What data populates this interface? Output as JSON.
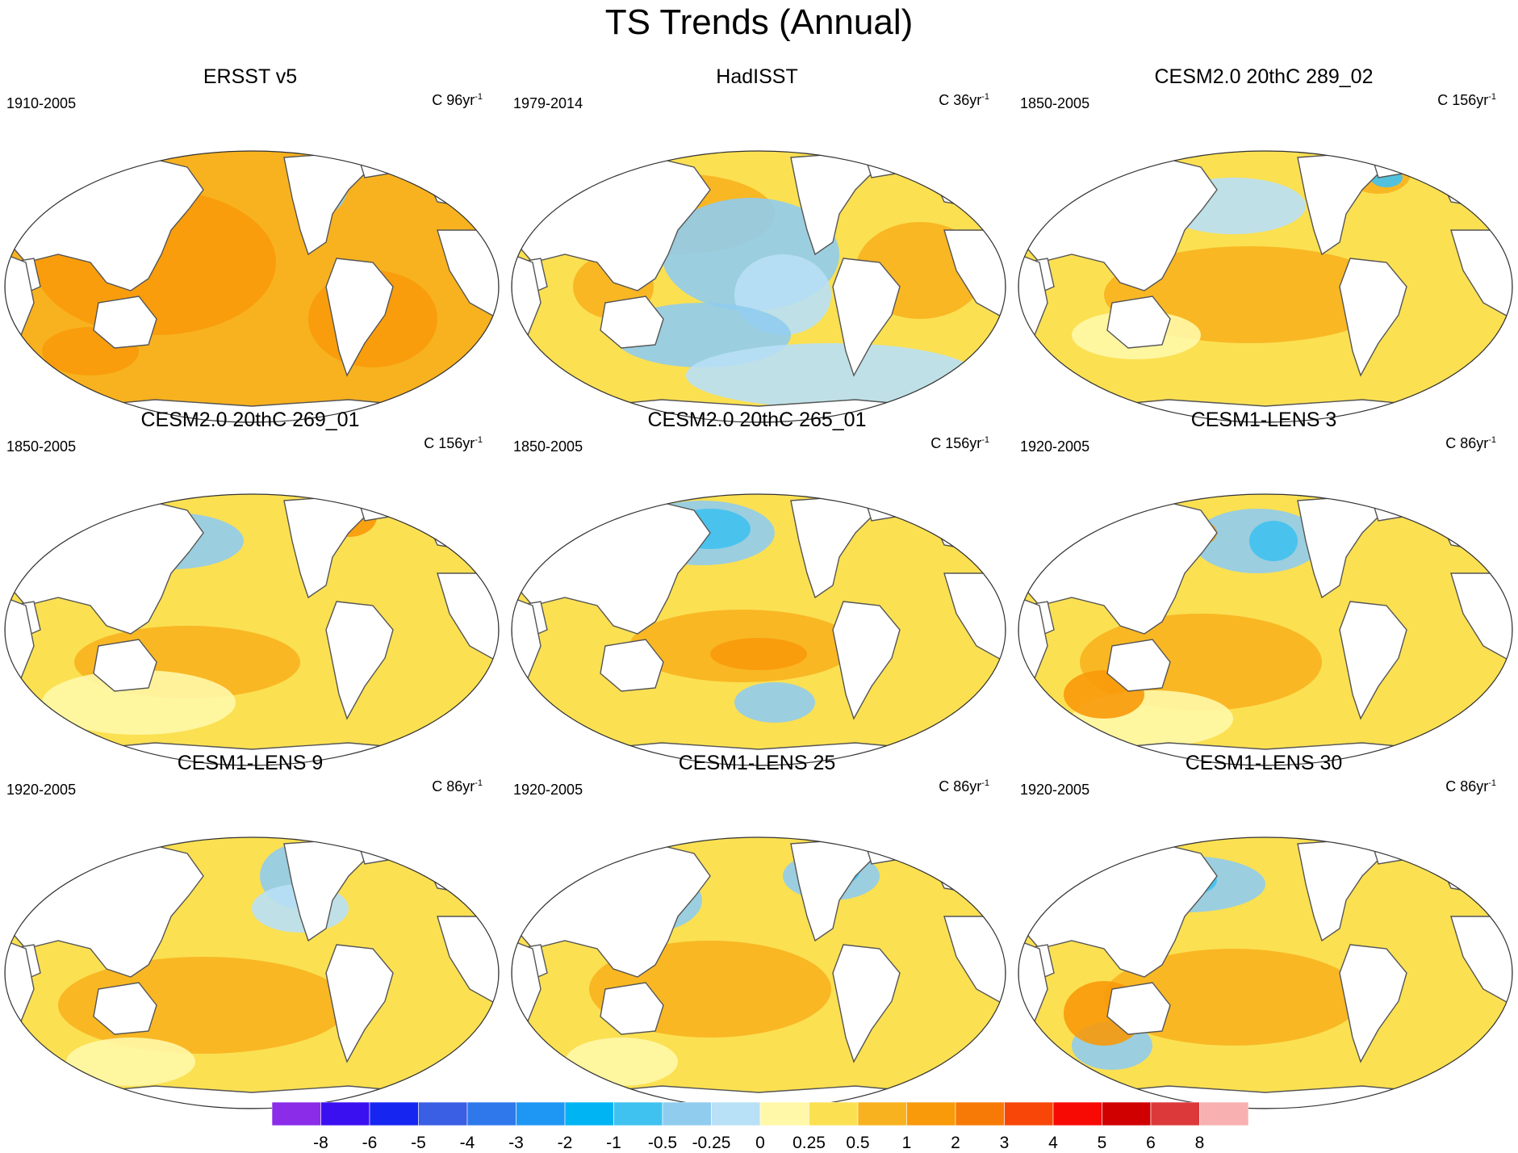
{
  "title": "TS Trends (Annual)",
  "panels": [
    {
      "title": "ERSST v5",
      "period": "1910-2005",
      "units": "C 96yr",
      "units_exp": "-1",
      "base": "#f8b21f",
      "variant": "ersst"
    },
    {
      "title": "HadISST",
      "period": "1979-2014",
      "units": "C 36yr",
      "units_exp": "-1",
      "base": "#fbe052",
      "variant": "hadisst"
    },
    {
      "title": "CESM2.0 20thC 289_02",
      "period": "1850-2005",
      "units": "C 156yr",
      "units_exp": "-1",
      "base": "#fbe052",
      "variant": "cesm2a"
    },
    {
      "title": "CESM2.0 20thC 269_01",
      "period": "1850-2005",
      "units": "C 156yr",
      "units_exp": "-1",
      "base": "#fbe052",
      "variant": "cesm2b"
    },
    {
      "title": "CESM2.0 20thC 265_01",
      "period": "1850-2005",
      "units": "C 156yr",
      "units_exp": "-1",
      "base": "#fbe052",
      "variant": "cesm2c"
    },
    {
      "title": "CESM1-LENS 3",
      "period": "1920-2005",
      "units": "C 86yr",
      "units_exp": "-1",
      "base": "#fbe052",
      "variant": "lens"
    },
    {
      "title": "CESM1-LENS 9",
      "period": "1920-2005",
      "units": "C 86yr",
      "units_exp": "-1",
      "base": "#fbe052",
      "variant": "lens9"
    },
    {
      "title": "CESM1-LENS 25",
      "period": "1920-2005",
      "units": "C 86yr",
      "units_exp": "-1",
      "base": "#fbe052",
      "variant": "lens25"
    },
    {
      "title": "CESM1-LENS 30",
      "period": "1920-2005",
      "units": "C 86yr",
      "units_exp": "-1",
      "base": "#fbe052",
      "variant": "lens30"
    }
  ],
  "colorbar": {
    "colors": [
      "#8a2ce8",
      "#3a10f0",
      "#1626f0",
      "#3a5ee4",
      "#2e78ec",
      "#1e96f4",
      "#00b4f4",
      "#40c2f0",
      "#90ccee",
      "#b8e0f6",
      "#fff8a8",
      "#fbe052",
      "#f8b21f",
      "#f89a0a",
      "#f87a06",
      "#f84608",
      "#f80a04",
      "#d00000",
      "#dc3a3a",
      "#f8b0b0"
    ],
    "labels": [
      "-8",
      "-6",
      "-5",
      "-4",
      "-3",
      "-2",
      "-1",
      "-0.5",
      "-0.25",
      "0",
      "0.25",
      "0.5",
      "1",
      "2",
      "3",
      "4",
      "5",
      "6",
      "8"
    ]
  }
}
